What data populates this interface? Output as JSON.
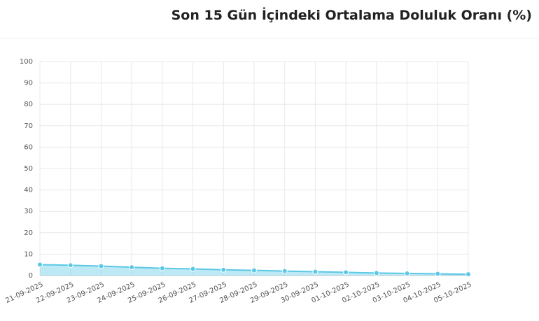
{
  "chart_data": {
    "type": "line",
    "title": "Son 15 Gün İçindeki Ortalama Doluluk Oranı (%)",
    "categories": [
      "21-09-2025",
      "22-09-2025",
      "23-09-2025",
      "24-09-2025",
      "25-09-2025",
      "26-09-2025",
      "27-09-2025",
      "28-09-2025",
      "29-09-2025",
      "30-09-2025",
      "01-10-2025",
      "02-10-2025",
      "03-10-2025",
      "04-10-2025",
      "05-10-2025"
    ],
    "series": [
      {
        "color": "#5bc8e6",
        "values": [
          5.1,
          4.8,
          4.4,
          3.9,
          3.4,
          3.1,
          2.7,
          2.4,
          2.1,
          1.8,
          1.5,
          1.2,
          1.0,
          0.8,
          0.6
        ]
      }
    ],
    "ylim": [
      0,
      100
    ],
    "yticks": [
      0,
      10,
      20,
      30,
      40,
      50,
      60,
      70,
      80,
      90,
      100
    ],
    "grid": true,
    "fill": true
  }
}
